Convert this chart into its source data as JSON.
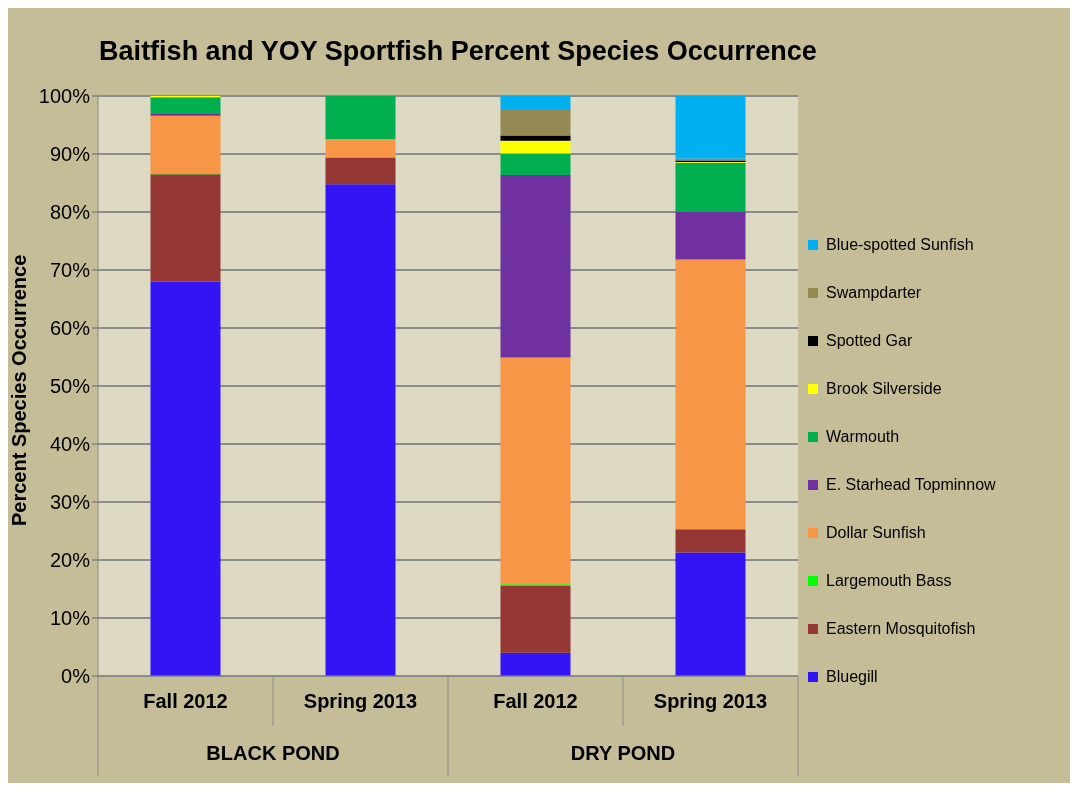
{
  "chart_data": {
    "type": "bar",
    "stacked": true,
    "title": "Baitfish and YOY Sportfish Percent Species Occurrence",
    "ylabel": "Percent Species Occurrence",
    "categories": [
      "Fall 2012",
      "Spring 2013",
      "Fall 2012",
      "Spring 2013"
    ],
    "annotations": [
      "BLACK POND",
      "DRY POND"
    ],
    "series": [
      {
        "name": "Bluegill",
        "color": "#3214f5",
        "values": [
          68,
          84.8,
          4,
          21.3
        ]
      },
      {
        "name": "Eastern Mosquitofish",
        "color": "#953735",
        "values": [
          18.5,
          4.6,
          11.5,
          4
        ]
      },
      {
        "name": "Largemouth Bass",
        "color": "#00ff00",
        "values": [
          0.2,
          0,
          0.3,
          0
        ]
      },
      {
        "name": "Dollar Sunfish",
        "color": "#f79646",
        "values": [
          9.9,
          3.2,
          39.1,
          46.5
        ]
      },
      {
        "name": "E. Starhead Topminnow",
        "color": "#7030a0",
        "values": [
          0.3,
          0,
          31.5,
          8.3
        ]
      },
      {
        "name": "Warmouth",
        "color": "#00b050",
        "values": [
          2.9,
          7.4,
          3.7,
          8.4
        ]
      },
      {
        "name": "Brook Silverside",
        "color": "#ffff00",
        "values": [
          0.2,
          0,
          2.2,
          0.1
        ]
      },
      {
        "name": "Spotted Gar",
        "color": "#000000",
        "values": [
          0,
          0,
          0.9,
          0.3
        ]
      },
      {
        "name": "Swampdarter",
        "color": "#948a54",
        "values": [
          0,
          0,
          4.4,
          0.3
        ]
      },
      {
        "name": "Blue-spotted Sunfish",
        "color": "#00b0f0",
        "values": [
          0,
          0,
          2.4,
          10.8
        ]
      }
    ],
    "ylim": [
      0,
      100
    ],
    "yticks": [
      {
        "value": 0,
        "label": "0%"
      },
      {
        "value": 10,
        "label": "10%"
      },
      {
        "value": 20,
        "label": "20%"
      },
      {
        "value": 30,
        "label": "30%"
      },
      {
        "value": 40,
        "label": "40%"
      },
      {
        "value": 50,
        "label": "50%"
      },
      {
        "value": 60,
        "label": "60%"
      },
      {
        "value": 70,
        "label": "70%"
      },
      {
        "value": 80,
        "label": "80%"
      },
      {
        "value": 90,
        "label": "90%"
      },
      {
        "value": 100,
        "label": "100%"
      }
    ],
    "grid": "y",
    "legend": "right"
  }
}
